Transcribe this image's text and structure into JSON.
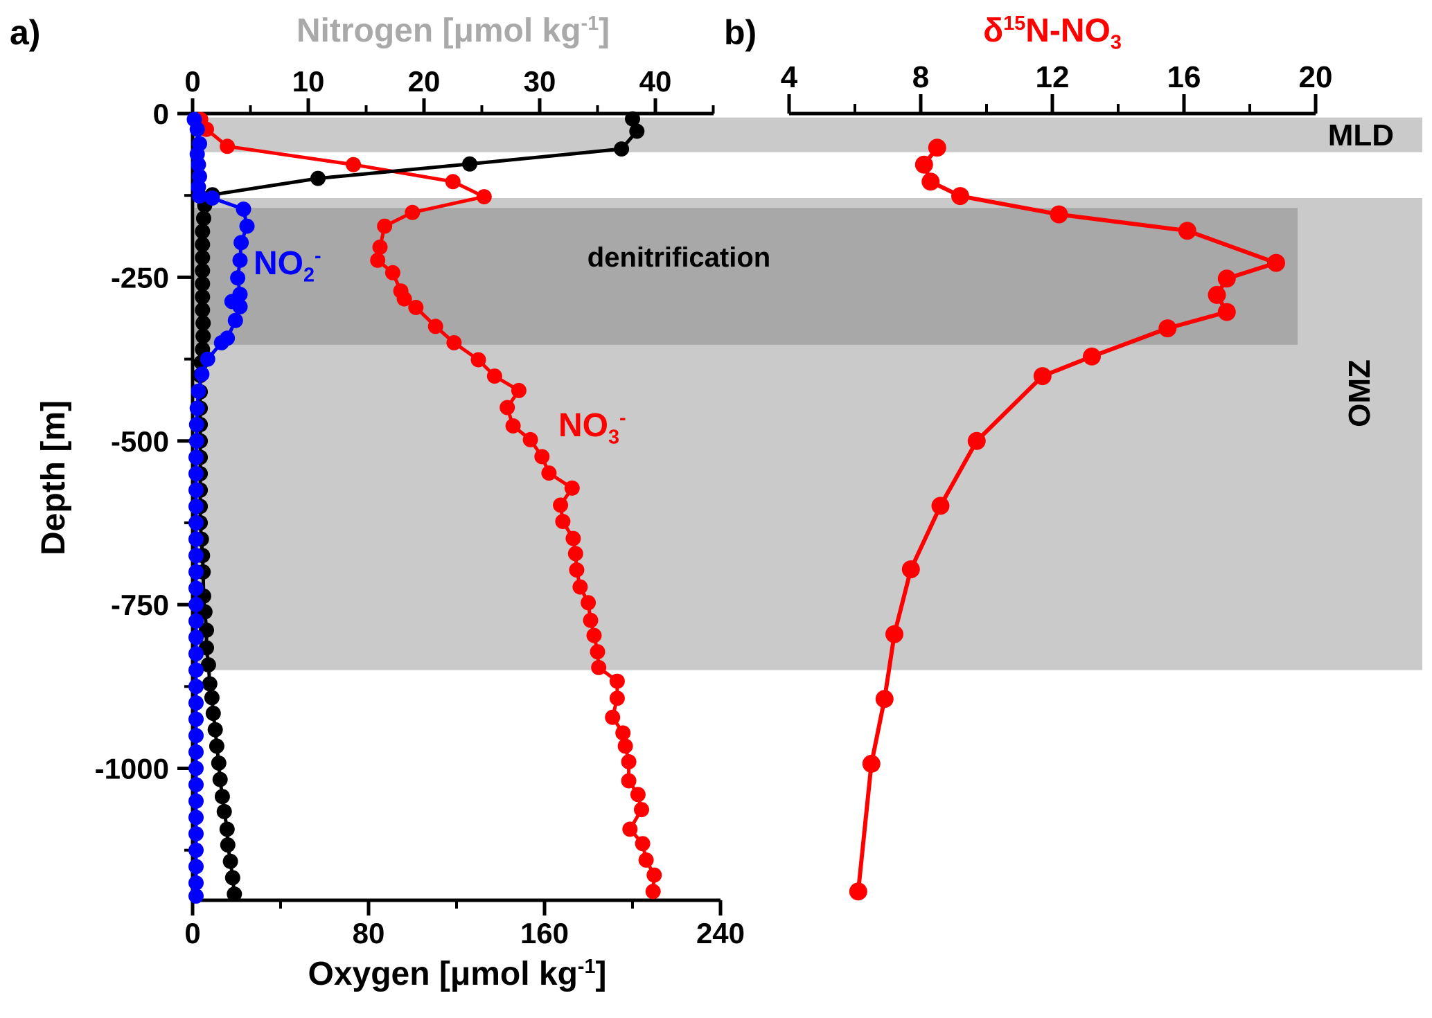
{
  "colors": {
    "red": "#ff0000",
    "blue": "#0000ff",
    "black": "#000000",
    "band_light": "#cacaca",
    "band_dark": "#a8a8a8",
    "title_gray": "#a9a9a9"
  },
  "titles": {
    "panel_a_letter": "a)",
    "panel_b_letter": "b)",
    "nitrogen_pre": "Nitrogen [μmol kg",
    "nitrogen_sup": "-1",
    "nitrogen_post": "]",
    "oxygen_pre": "Oxygen [μmol kg",
    "oxygen_sup": "-1",
    "oxygen_post": "]",
    "depth": "Depth [m]",
    "delta_pre": "δ",
    "delta_sup": "15",
    "delta_mid": "N-NO",
    "delta_sub": "3"
  },
  "annotations": {
    "mld": "MLD",
    "omz": "OMZ",
    "denitrification": "denitrification",
    "no2_pre": "NO",
    "no2_sub": "2",
    "no2_sup": "-",
    "no3_pre": "NO",
    "no3_sub": "3",
    "no3_sup": "-"
  },
  "chart_data": [
    {
      "panel": "a",
      "type": "line",
      "title": "Nitrogen [μmol kg-1] (top axis) / Oxygen [μmol kg-1] (bottom axis)",
      "ylabel": "Depth [m]",
      "grid": false,
      "y_axis": {
        "range": [
          0,
          -1200
        ],
        "ticks": [
          0,
          -250,
          -500,
          -750,
          -1000
        ],
        "minor_ticks": [
          -125,
          -375,
          -625,
          -875,
          -1125
        ]
      },
      "x_axis_top": {
        "label": "Nitrogen [μmol kg-1]",
        "range": [
          0,
          45
        ],
        "ticks": [
          0,
          10,
          20,
          30,
          40
        ],
        "minor_ticks": [
          5,
          15,
          25,
          35,
          45
        ]
      },
      "x_axis_bottom": {
        "label": "Oxygen [μmol kg-1]",
        "range": [
          0,
          240
        ],
        "ticks": [
          0,
          80,
          160,
          240
        ],
        "minor_ticks": [
          40,
          120,
          200
        ]
      },
      "bands": [
        {
          "name": "MLD",
          "depth_range": [
            -6,
            -59
          ],
          "shade": "light"
        },
        {
          "name": "OMZ",
          "depth_range": [
            -129,
            -850
          ],
          "shade": "light"
        },
        {
          "name": "denitrification",
          "depth_range": [
            -144,
            -353
          ],
          "shade": "dark"
        }
      ],
      "series": [
        {
          "name": "NO3-",
          "color": "red",
          "x_axis": "nitrogen",
          "points": [
            [
              -9,
              0.7
            ],
            [
              -24,
              1.2
            ],
            [
              -50,
              3.0
            ],
            [
              -78,
              13.9
            ],
            [
              -104,
              22.5
            ],
            [
              -127,
              25.2
            ],
            [
              -151,
              19.0
            ],
            [
              -172,
              16.6
            ],
            [
              -204,
              16.2
            ],
            [
              -224,
              16.0
            ],
            [
              -243,
              17.3
            ],
            [
              -271,
              18.0
            ],
            [
              -283,
              18.3
            ],
            [
              -296,
              19.3
            ],
            [
              -325,
              21.0
            ],
            [
              -350,
              22.6
            ],
            [
              -376,
              24.7
            ],
            [
              -401,
              26.1
            ],
            [
              -423,
              28.2
            ],
            [
              -449,
              27.2
            ],
            [
              -477,
              27.7
            ],
            [
              -498,
              29.2
            ],
            [
              -524,
              30.2
            ],
            [
              -549,
              30.8
            ],
            [
              -572,
              32.8
            ],
            [
              -598,
              31.8
            ],
            [
              -623,
              32.0
            ],
            [
              -649,
              32.9
            ],
            [
              -672,
              33.1
            ],
            [
              -697,
              33.2
            ],
            [
              -723,
              33.5
            ],
            [
              -747,
              34.2
            ],
            [
              -774,
              34.4
            ],
            [
              -797,
              34.7
            ],
            [
              -822,
              35.0
            ],
            [
              -846,
              35.1
            ],
            [
              -867,
              36.7
            ],
            [
              -893,
              36.7
            ],
            [
              -922,
              36.3
            ],
            [
              -946,
              37.2
            ],
            [
              -966,
              37.4
            ],
            [
              -990,
              37.7
            ],
            [
              -1019,
              37.7
            ],
            [
              -1040,
              38.5
            ],
            [
              -1063,
              38.8
            ],
            [
              -1093,
              37.8
            ],
            [
              -1115,
              38.9
            ],
            [
              -1140,
              39.2
            ],
            [
              -1163,
              39.9
            ],
            [
              -1188,
              39.8
            ]
          ]
        },
        {
          "name": "O2",
          "color": "black",
          "x_axis": "oxygen",
          "points": [
            [
              -8,
              200
            ],
            [
              -27,
              202
            ],
            [
              -54,
              195
            ],
            [
              -77,
              126
            ],
            [
              -99,
              57
            ],
            [
              -124,
              9
            ],
            [
              -140,
              5.5
            ],
            [
              -160,
              5
            ],
            [
              -180,
              4.5
            ],
            [
              -200,
              4.5
            ],
            [
              -220,
              4.5
            ],
            [
              -240,
              4.5
            ],
            [
              -260,
              4.5
            ],
            [
              -280,
              4.5
            ],
            [
              -300,
              4.5
            ],
            [
              -320,
              4.8
            ],
            [
              -340,
              4.8
            ],
            [
              -360,
              4.5
            ],
            [
              -380,
              4.0
            ],
            [
              -400,
              3.5
            ],
            [
              -425,
              3.5
            ],
            [
              -450,
              3.5
            ],
            [
              -475,
              3.5
            ],
            [
              -500,
              3.5
            ],
            [
              -525,
              3.5
            ],
            [
              -550,
              3.5
            ],
            [
              -575,
              3.5
            ],
            [
              -600,
              3.5
            ],
            [
              -625,
              3.5
            ],
            [
              -650,
              4.0
            ],
            [
              -675,
              4.5
            ],
            [
              -700,
              4.8
            ],
            [
              -737,
              5.0
            ],
            [
              -761,
              5.6
            ],
            [
              -789,
              6.3
            ],
            [
              -816,
              6.3
            ],
            [
              -842,
              7.2
            ],
            [
              -871,
              7.8
            ],
            [
              -892,
              8.8
            ],
            [
              -916,
              9.4
            ],
            [
              -941,
              10.3
            ],
            [
              -966,
              11.0
            ],
            [
              -992,
              11.9
            ],
            [
              -1017,
              12.5
            ],
            [
              -1043,
              13.5
            ],
            [
              -1066,
              14.4
            ],
            [
              -1093,
              15.7
            ],
            [
              -1117,
              16.0
            ],
            [
              -1142,
              17.2
            ],
            [
              -1167,
              18.2
            ],
            [
              -1192,
              19.0
            ]
          ]
        },
        {
          "name": "NO2-",
          "color": "blue",
          "x_axis": "nitrogen",
          "points": [
            [
              -9,
              0.15
            ],
            [
              -24,
              0.4
            ],
            [
              -46,
              0.6
            ],
            [
              -62,
              0.4
            ],
            [
              -78,
              0.5
            ],
            [
              -96,
              0.6
            ],
            [
              -112,
              0.5
            ],
            [
              -126,
              0.6
            ],
            [
              -129,
              1.7
            ],
            [
              -146,
              4.4
            ],
            [
              -172,
              4.7
            ],
            [
              -197,
              4.2
            ],
            [
              -224,
              4.1
            ],
            [
              -251,
              3.9
            ],
            [
              -276,
              4.1
            ],
            [
              -287,
              3.4
            ],
            [
              -295,
              4.1
            ],
            [
              -316,
              3.7
            ],
            [
              -343,
              3.0
            ],
            [
              -350,
              2.5
            ],
            [
              -375,
              1.3
            ],
            [
              -398,
              0.8
            ],
            [
              -424,
              0.5
            ],
            [
              -450,
              0.4
            ],
            [
              -475,
              0.35
            ],
            [
              -500,
              0.35
            ],
            [
              -525,
              0.3
            ],
            [
              -550,
              0.3
            ],
            [
              -575,
              0.3
            ],
            [
              -600,
              0.3
            ],
            [
              -625,
              0.3
            ],
            [
              -650,
              0.3
            ],
            [
              -675,
              0.3
            ],
            [
              -700,
              0.3
            ],
            [
              -725,
              0.3
            ],
            [
              -750,
              0.3
            ],
            [
              -775,
              0.3
            ],
            [
              -800,
              0.3
            ],
            [
              -825,
              0.3
            ],
            [
              -850,
              0.3
            ],
            [
              -875,
              0.3
            ],
            [
              -900,
              0.3
            ],
            [
              -925,
              0.3
            ],
            [
              -950,
              0.3
            ],
            [
              -975,
              0.3
            ],
            [
              -1000,
              0.3
            ],
            [
              -1025,
              0.3
            ],
            [
              -1050,
              0.3
            ],
            [
              -1075,
              0.3
            ],
            [
              -1100,
              0.3
            ],
            [
              -1125,
              0.3
            ],
            [
              -1150,
              0.3
            ],
            [
              -1175,
              0.3
            ],
            [
              -1195,
              0.3
            ]
          ]
        }
      ]
    },
    {
      "panel": "b",
      "type": "line",
      "title": "δ15N-NO3",
      "grid": false,
      "x_axis": {
        "label": "δ15N-NO3",
        "range": [
          4,
          20
        ],
        "ticks": [
          4,
          8,
          12,
          16,
          20
        ],
        "minor_ticks": [
          6,
          10,
          14,
          18
        ]
      },
      "y_axis": {
        "range": [
          0,
          -1200
        ]
      },
      "series": [
        {
          "name": "d15N-NO3",
          "color": "red",
          "x_axis": "delta",
          "points": [
            [
              -52,
              8.5
            ],
            [
              -78,
              8.1
            ],
            [
              -104,
              8.3
            ],
            [
              -126,
              9.2
            ],
            [
              -154,
              12.2
            ],
            [
              -179,
              16.1
            ],
            [
              -228,
              18.8
            ],
            [
              -252,
              17.3
            ],
            [
              -277,
              17.0
            ],
            [
              -303,
              17.3
            ],
            [
              -328,
              15.5
            ],
            [
              -371,
              13.2
            ],
            [
              -401,
              11.7
            ],
            [
              -500,
              9.7
            ],
            [
              -599,
              8.6
            ],
            [
              -696,
              7.7
            ],
            [
              -795,
              7.2
            ],
            [
              -894,
              6.9
            ],
            [
              -993,
              6.5
            ],
            [
              -1188,
              6.1
            ]
          ]
        }
      ]
    }
  ]
}
